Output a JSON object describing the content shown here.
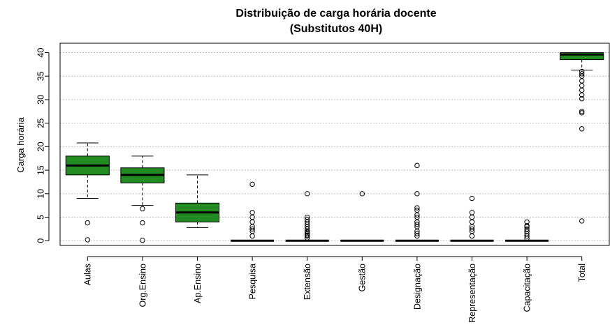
{
  "chart_data": {
    "type": "boxplot",
    "title": "Distribuição de carga horária docente",
    "subtitle": "(Substitutos 40H)",
    "xlabel": "",
    "ylabel": "Carga horária",
    "ylim": [
      -1,
      42
    ],
    "yticks": [
      0,
      5,
      10,
      15,
      20,
      25,
      30,
      35,
      40
    ],
    "grid": "horizontal-dashed",
    "box_color": "#228B22",
    "categories": [
      "Aulas",
      "Org.Ensino",
      "Ap.Ensino",
      "Pesquisa",
      "Extensão",
      "Gestão",
      "Designação",
      "Representação",
      "Capacitação",
      "Total"
    ],
    "boxes": [
      {
        "category": "Aulas",
        "whisker_low": 9,
        "q1": 14,
        "median": 16,
        "q3": 18,
        "whisker_high": 20.8,
        "outliers": [
          3.8,
          0.2
        ]
      },
      {
        "category": "Org.Ensino",
        "whisker_low": 7.5,
        "q1": 12.3,
        "median": 14,
        "q3": 15.5,
        "whisker_high": 18,
        "outliers": [
          6.8,
          3.8,
          0.1
        ]
      },
      {
        "category": "Ap.Ensino",
        "whisker_low": 2.8,
        "q1": 4,
        "median": 6,
        "q3": 8,
        "whisker_high": 14,
        "outliers": []
      },
      {
        "category": "Pesquisa",
        "whisker_low": 0,
        "q1": 0,
        "median": 0,
        "q3": 0,
        "whisker_high": 0,
        "outliers": [
          12,
          6,
          5,
          4,
          3,
          2.5,
          2,
          1
        ]
      },
      {
        "category": "Extensão",
        "whisker_low": 0,
        "q1": 0,
        "median": 0,
        "q3": 0,
        "whisker_high": 0,
        "outliers": [
          10,
          5,
          4.5,
          4,
          3.5,
          3,
          2.5,
          2,
          1.8,
          1.5,
          1.2,
          1,
          0.6
        ]
      },
      {
        "category": "Gestão",
        "whisker_low": 0,
        "q1": 0,
        "median": 0,
        "q3": 0,
        "whisker_high": 0,
        "outliers": [
          10
        ]
      },
      {
        "category": "Designação",
        "whisker_low": 0,
        "q1": 0,
        "median": 0,
        "q3": 0,
        "whisker_high": 0,
        "outliers": [
          16,
          10,
          7,
          6.5,
          5.5,
          5,
          4,
          3.5,
          3,
          2,
          1.5,
          1
        ]
      },
      {
        "category": "Representação",
        "whisker_low": 0,
        "q1": 0,
        "median": 0,
        "q3": 0,
        "whisker_high": 0,
        "outliers": [
          9,
          6,
          5,
          4,
          3,
          2.5,
          2,
          1
        ]
      },
      {
        "category": "Capacitação",
        "whisker_low": 0,
        "q1": 0,
        "median": 0,
        "q3": 0,
        "whisker_high": 0,
        "outliers": [
          4,
          3.2,
          3,
          2.5,
          2,
          1.5,
          1,
          0.5
        ]
      },
      {
        "category": "Total",
        "whisker_low": 36.3,
        "q1": 38.5,
        "median": 39.6,
        "q3": 40,
        "whisker_high": 40,
        "outliers": [
          36,
          35.5,
          35,
          34,
          33,
          32,
          31,
          30.2,
          27.5,
          27.2,
          23.8,
          4.2
        ]
      }
    ]
  }
}
